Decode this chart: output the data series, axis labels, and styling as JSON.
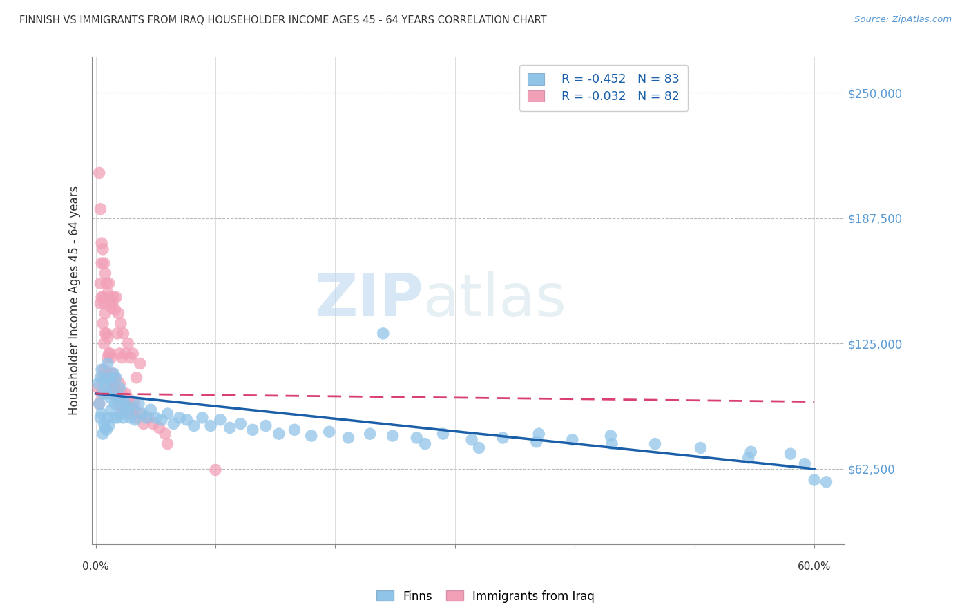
{
  "title": "FINNISH VS IMMIGRANTS FROM IRAQ HOUSEHOLDER INCOME AGES 45 - 64 YEARS CORRELATION CHART",
  "source": "Source: ZipAtlas.com",
  "ylabel": "Householder Income Ages 45 - 64 years",
  "ytick_labels": [
    "$62,500",
    "$125,000",
    "$187,500",
    "$250,000"
  ],
  "ytick_values": [
    62500,
    125000,
    187500,
    250000
  ],
  "ymin": 25000,
  "ymax": 268000,
  "xmin": -0.003,
  "xmax": 0.625,
  "legend1_r": "R = -0.452",
  "legend1_n": "N = 83",
  "legend2_r": "R = -0.032",
  "legend2_n": "N = 82",
  "color_finns": "#90c4e8",
  "color_iraq": "#f2a0b8",
  "color_finns_line": "#1a5fa8",
  "color_iraq_line": "#d94070",
  "watermark_zip": "ZIP",
  "watermark_atlas": "atlas",
  "finns_x": [
    0.002,
    0.003,
    0.004,
    0.004,
    0.005,
    0.005,
    0.006,
    0.006,
    0.007,
    0.007,
    0.008,
    0.008,
    0.009,
    0.009,
    0.01,
    0.01,
    0.011,
    0.011,
    0.012,
    0.013,
    0.013,
    0.014,
    0.015,
    0.015,
    0.016,
    0.017,
    0.018,
    0.019,
    0.02,
    0.021,
    0.022,
    0.023,
    0.024,
    0.025,
    0.027,
    0.029,
    0.031,
    0.033,
    0.036,
    0.039,
    0.042,
    0.046,
    0.05,
    0.055,
    0.06,
    0.065,
    0.07,
    0.076,
    0.082,
    0.089,
    0.096,
    0.104,
    0.112,
    0.121,
    0.131,
    0.142,
    0.153,
    0.166,
    0.18,
    0.195,
    0.211,
    0.229,
    0.248,
    0.268,
    0.29,
    0.314,
    0.34,
    0.368,
    0.398,
    0.431,
    0.467,
    0.505,
    0.547,
    0.545,
    0.58,
    0.592,
    0.6,
    0.61,
    0.43,
    0.37,
    0.32,
    0.275,
    0.24
  ],
  "finns_y": [
    105000,
    95000,
    108000,
    88000,
    112000,
    90000,
    100000,
    80000,
    107000,
    85000,
    104000,
    83000,
    100000,
    82000,
    115000,
    88000,
    108000,
    84000,
    98000,
    105000,
    92000,
    100000,
    110000,
    88000,
    95000,
    108000,
    88000,
    96000,
    103000,
    90000,
    97000,
    88000,
    93000,
    95000,
    92000,
    88000,
    93000,
    87000,
    95000,
    90000,
    88000,
    92000,
    88000,
    87000,
    90000,
    85000,
    88000,
    87000,
    84000,
    88000,
    84000,
    87000,
    83000,
    85000,
    82000,
    84000,
    80000,
    82000,
    79000,
    81000,
    78000,
    80000,
    79000,
    78000,
    80000,
    77000,
    78000,
    76000,
    77000,
    75000,
    75000,
    73000,
    71000,
    68000,
    70000,
    65000,
    57000,
    56000,
    79000,
    80000,
    73000,
    75000,
    130000
  ],
  "iraq_x": [
    0.002,
    0.003,
    0.003,
    0.004,
    0.004,
    0.005,
    0.005,
    0.005,
    0.006,
    0.006,
    0.006,
    0.007,
    0.007,
    0.007,
    0.008,
    0.008,
    0.008,
    0.009,
    0.009,
    0.01,
    0.01,
    0.011,
    0.011,
    0.012,
    0.012,
    0.013,
    0.013,
    0.014,
    0.015,
    0.016,
    0.017,
    0.018,
    0.019,
    0.02,
    0.021,
    0.022,
    0.023,
    0.025,
    0.027,
    0.029,
    0.031,
    0.034,
    0.037,
    0.014,
    0.016,
    0.018,
    0.02,
    0.022,
    0.025,
    0.028,
    0.032,
    0.004,
    0.005,
    0.006,
    0.007,
    0.008,
    0.009,
    0.01,
    0.011,
    0.012,
    0.013,
    0.014,
    0.015,
    0.016,
    0.017,
    0.018,
    0.019,
    0.02,
    0.022,
    0.024,
    0.026,
    0.028,
    0.031,
    0.034,
    0.037,
    0.04,
    0.044,
    0.048,
    0.053,
    0.058,
    0.1,
    0.06
  ],
  "iraq_y": [
    103000,
    210000,
    95000,
    192000,
    145000,
    175000,
    148000,
    100000,
    172000,
    148000,
    108000,
    165000,
    145000,
    112000,
    160000,
    140000,
    110000,
    155000,
    130000,
    150000,
    128000,
    155000,
    120000,
    148000,
    120000,
    143000,
    118000,
    145000,
    148000,
    142000,
    148000,
    130000,
    140000,
    120000,
    135000,
    118000,
    130000,
    120000,
    125000,
    118000,
    120000,
    108000,
    115000,
    105000,
    108000,
    100000,
    105000,
    100000,
    100000,
    97000,
    95000,
    155000,
    165000,
    135000,
    125000,
    130000,
    105000,
    118000,
    110000,
    108000,
    100000,
    110000,
    105000,
    103000,
    100000,
    98000,
    95000,
    97000,
    93000,
    97000,
    95000,
    90000,
    92000,
    88000,
    90000,
    85000,
    88000,
    85000,
    83000,
    80000,
    62000,
    75000
  ]
}
